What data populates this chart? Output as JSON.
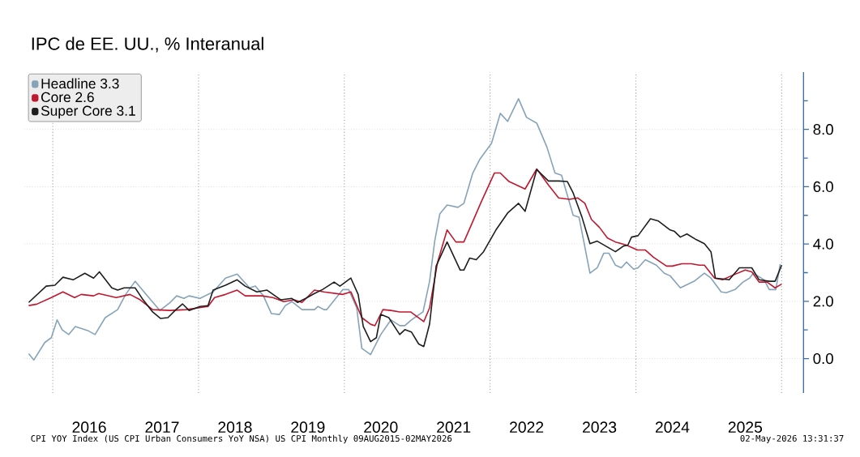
{
  "chart_data": {
    "type": "line",
    "title": "IPC de EE. UU., % Interanual",
    "xlim": [
      2015.61,
      2026.3
    ],
    "ylim": [
      -1.2,
      10
    ],
    "xticks": [
      {
        "value": 2016.5,
        "label": "2016"
      },
      {
        "value": 2017.5,
        "label": "2017"
      },
      {
        "value": 2018.5,
        "label": "2018"
      },
      {
        "value": 2019.5,
        "label": "2019"
      },
      {
        "value": 2020.5,
        "label": "2020"
      },
      {
        "value": 2021.5,
        "label": "2021"
      },
      {
        "value": 2022.5,
        "label": "2022"
      },
      {
        "value": 2023.5,
        "label": "2023"
      },
      {
        "value": 2024.5,
        "label": "2024"
      },
      {
        "value": 2025.5,
        "label": "2025"
      }
    ],
    "yticks": [
      {
        "value": 0,
        "label": "0.0"
      },
      {
        "value": 1,
        "label": null
      },
      {
        "value": 2,
        "label": "2.0"
      },
      {
        "value": 3,
        "label": null
      },
      {
        "value": 4,
        "label": "4.0"
      },
      {
        "value": 5,
        "label": null
      },
      {
        "value": 6,
        "label": "6.0"
      },
      {
        "value": 7,
        "label": null
      },
      {
        "value": 8,
        "label": "8.0"
      },
      {
        "value": 9,
        "label": null
      }
    ],
    "grid": "y",
    "legend": "top left",
    "line_style": "solid",
    "ref_lines": [
      {
        "axis": "x",
        "value": 2016,
        "color": "#9a9a9a",
        "line_style": "dotted"
      },
      {
        "axis": "x",
        "value": 2018,
        "color": "#9a9a9a",
        "line_style": "dotted"
      },
      {
        "axis": "x",
        "value": 2020,
        "color": "#9a9a9a",
        "line_style": "dotted"
      },
      {
        "axis": "x",
        "value": 2022,
        "color": "#9a9a9a",
        "line_style": "dotted"
      },
      {
        "axis": "x",
        "value": 2024,
        "color": "#9a9a9a",
        "line_style": "dotted"
      },
      {
        "axis": "x",
        "value": 2026,
        "color": "#9a9a9a",
        "line_style": "dotted"
      }
    ],
    "annotations": [
      "CPI YOY Index (US CPI Urban Consumers YoY NSA) US CPI Monthly 09AUG2015-02MAY2026",
      "02-May-2026 13:31:37"
    ],
    "series": [
      {
        "name": "Headline 3.3",
        "color": "#86a3b8",
        "x": [
          2015.67,
          2015.74,
          2015.89,
          2015.98,
          2016.06,
          2016.13,
          2016.22,
          2016.31,
          2016.48,
          2016.58,
          2016.72,
          2016.89,
          2017.0,
          2017.13,
          2017.28,
          2017.47,
          2017.61,
          2017.7,
          2017.8,
          2017.87,
          2018.02,
          2018.2,
          2018.37,
          2018.53,
          2018.7,
          2018.78,
          2018.89,
          2019.0,
          2019.11,
          2019.19,
          2019.28,
          2019.42,
          2019.59,
          2019.64,
          2019.72,
          2019.76,
          2019.98,
          2020.06,
          2020.17,
          2020.24,
          2020.36,
          2020.5,
          2020.64,
          2020.76,
          2020.83,
          2020.92,
          2021.08,
          2021.17,
          2021.24,
          2021.31,
          2021.41,
          2021.56,
          2021.64,
          2021.76,
          2021.86,
          2022.02,
          2022.14,
          2022.24,
          2022.39,
          2022.5,
          2022.64,
          2022.78,
          2022.89,
          2022.98,
          2023.14,
          2023.22,
          2023.37,
          2023.47,
          2023.56,
          2023.63,
          2023.72,
          2023.8,
          2023.87,
          2023.97,
          2024.03,
          2024.13,
          2024.28,
          2024.39,
          2024.47,
          2024.61,
          2024.8,
          2024.94,
          2025.03,
          2025.17,
          2025.24,
          2025.36,
          2025.47,
          2025.56,
          2025.61,
          2025.76,
          2025.83,
          2025.92,
          2025.98
        ],
        "values": [
          0.17,
          -0.05,
          0.56,
          0.73,
          1.35,
          1.0,
          0.84,
          1.12,
          0.98,
          0.84,
          1.43,
          1.71,
          2.24,
          2.7,
          2.24,
          1.68,
          1.96,
          2.19,
          2.1,
          2.19,
          2.1,
          2.33,
          2.81,
          2.95,
          2.47,
          2.53,
          2.19,
          1.57,
          1.54,
          1.85,
          1.99,
          1.71,
          1.71,
          1.82,
          1.71,
          1.71,
          2.41,
          2.41,
          1.77,
          0.36,
          0.14,
          0.84,
          1.35,
          1.15,
          1.15,
          1.35,
          1.63,
          2.7,
          4.1,
          5.05,
          5.36,
          5.28,
          5.42,
          6.46,
          6.96,
          7.52,
          8.56,
          8.28,
          9.07,
          8.42,
          8.22,
          7.38,
          6.48,
          6.4,
          5.0,
          4.94,
          2.98,
          3.17,
          3.68,
          3.68,
          3.26,
          3.17,
          3.37,
          3.12,
          3.17,
          3.45,
          3.26,
          2.98,
          2.89,
          2.47,
          2.7,
          2.98,
          2.81,
          2.33,
          2.3,
          2.41,
          2.67,
          2.81,
          2.98,
          2.75,
          2.41,
          2.41,
          3.3
        ]
      },
      {
        "name": "Core 2.6",
        "color": "#c0182f",
        "x": [
          2015.67,
          2015.78,
          2015.98,
          2016.14,
          2016.3,
          2016.39,
          2016.56,
          2016.63,
          2016.87,
          2017.06,
          2017.2,
          2017.37,
          2017.61,
          2017.83,
          2018.13,
          2018.22,
          2018.37,
          2018.53,
          2018.64,
          2018.87,
          2019.02,
          2019.17,
          2019.31,
          2019.42,
          2019.59,
          2019.72,
          2019.98,
          2020.09,
          2020.24,
          2020.36,
          2020.42,
          2020.53,
          2020.64,
          2020.76,
          2020.91,
          2021.09,
          2021.17,
          2021.28,
          2021.41,
          2021.53,
          2021.64,
          2021.76,
          2021.87,
          2022.06,
          2022.14,
          2022.26,
          2022.48,
          2022.64,
          2022.8,
          2022.94,
          2023.09,
          2023.2,
          2023.3,
          2023.39,
          2023.5,
          2023.61,
          2023.72,
          2023.87,
          2024.02,
          2024.13,
          2024.24,
          2024.42,
          2024.5,
          2024.63,
          2024.76,
          2024.87,
          2024.94,
          2025.08,
          2025.19,
          2025.31,
          2025.5,
          2025.59,
          2025.69,
          2025.8,
          2025.91,
          2026.0
        ],
        "values": [
          1.85,
          1.9,
          2.13,
          2.33,
          2.13,
          2.24,
          2.19,
          2.27,
          2.13,
          2.24,
          2.05,
          1.71,
          1.68,
          1.71,
          1.82,
          2.13,
          2.24,
          2.39,
          2.19,
          2.19,
          2.13,
          1.99,
          2.05,
          1.96,
          2.39,
          2.33,
          2.24,
          2.33,
          1.43,
          1.2,
          1.15,
          1.71,
          1.68,
          1.63,
          1.63,
          1.29,
          1.77,
          3.37,
          4.49,
          4.07,
          4.07,
          4.77,
          5.42,
          6.48,
          6.48,
          6.18,
          5.92,
          6.62,
          6.06,
          5.61,
          5.56,
          5.61,
          5.42,
          4.86,
          4.58,
          4.21,
          4.07,
          3.96,
          3.79,
          3.79,
          3.54,
          3.23,
          3.23,
          3.31,
          3.31,
          3.26,
          3.26,
          2.81,
          2.75,
          2.89,
          3.09,
          3.03,
          2.67,
          2.67,
          2.47,
          2.6
        ]
      },
      {
        "name": "Super Core 3.1",
        "color": "#1e1e1e",
        "x": [
          2015.67,
          2015.91,
          2016.03,
          2016.14,
          2016.28,
          2016.44,
          2016.56,
          2016.64,
          2016.81,
          2016.89,
          2016.98,
          2017.13,
          2017.24,
          2017.37,
          2017.48,
          2017.58,
          2017.69,
          2017.78,
          2017.87,
          2018.02,
          2018.13,
          2018.2,
          2018.37,
          2018.53,
          2018.64,
          2018.8,
          2018.94,
          2019.13,
          2019.28,
          2019.36,
          2019.47,
          2019.59,
          2019.7,
          2019.86,
          2019.94,
          2020.09,
          2020.19,
          2020.26,
          2020.36,
          2020.44,
          2020.5,
          2020.61,
          2020.76,
          2020.83,
          2020.92,
          2021.02,
          2021.09,
          2021.17,
          2021.26,
          2021.41,
          2021.59,
          2021.64,
          2021.72,
          2021.81,
          2021.91,
          2022.08,
          2022.24,
          2022.39,
          2022.48,
          2022.64,
          2022.8,
          2022.94,
          2023.06,
          2023.14,
          2023.26,
          2023.37,
          2023.47,
          2023.72,
          2023.83,
          2023.89,
          2023.94,
          2024.03,
          2024.2,
          2024.31,
          2024.47,
          2024.53,
          2024.61,
          2024.7,
          2024.83,
          2024.94,
          2025.03,
          2025.09,
          2025.28,
          2025.42,
          2025.59,
          2025.69,
          2025.83,
          2025.91,
          2026.0
        ],
        "values": [
          1.96,
          2.53,
          2.56,
          2.84,
          2.75,
          2.98,
          2.81,
          3.03,
          2.47,
          2.39,
          2.47,
          2.47,
          2.05,
          1.63,
          1.4,
          1.43,
          1.71,
          1.91,
          1.68,
          1.82,
          1.85,
          2.39,
          2.56,
          2.75,
          2.53,
          2.33,
          2.39,
          2.05,
          2.1,
          1.96,
          2.1,
          2.27,
          2.41,
          2.67,
          2.53,
          2.81,
          2.24,
          1.12,
          0.59,
          0.73,
          1.54,
          1.43,
          0.84,
          1.01,
          0.93,
          0.51,
          0.42,
          1.21,
          3.23,
          4.07,
          3.09,
          3.09,
          3.51,
          3.45,
          3.73,
          4.49,
          5.08,
          5.42,
          5.14,
          6.6,
          6.2,
          6.2,
          6.18,
          5.78,
          4.94,
          4.01,
          4.1,
          3.73,
          3.93,
          3.96,
          4.24,
          4.29,
          4.88,
          4.8,
          4.49,
          4.44,
          4.24,
          4.35,
          4.15,
          4.01,
          3.73,
          2.81,
          2.75,
          3.17,
          3.17,
          2.75,
          2.7,
          2.7,
          3.26
        ]
      }
    ]
  }
}
